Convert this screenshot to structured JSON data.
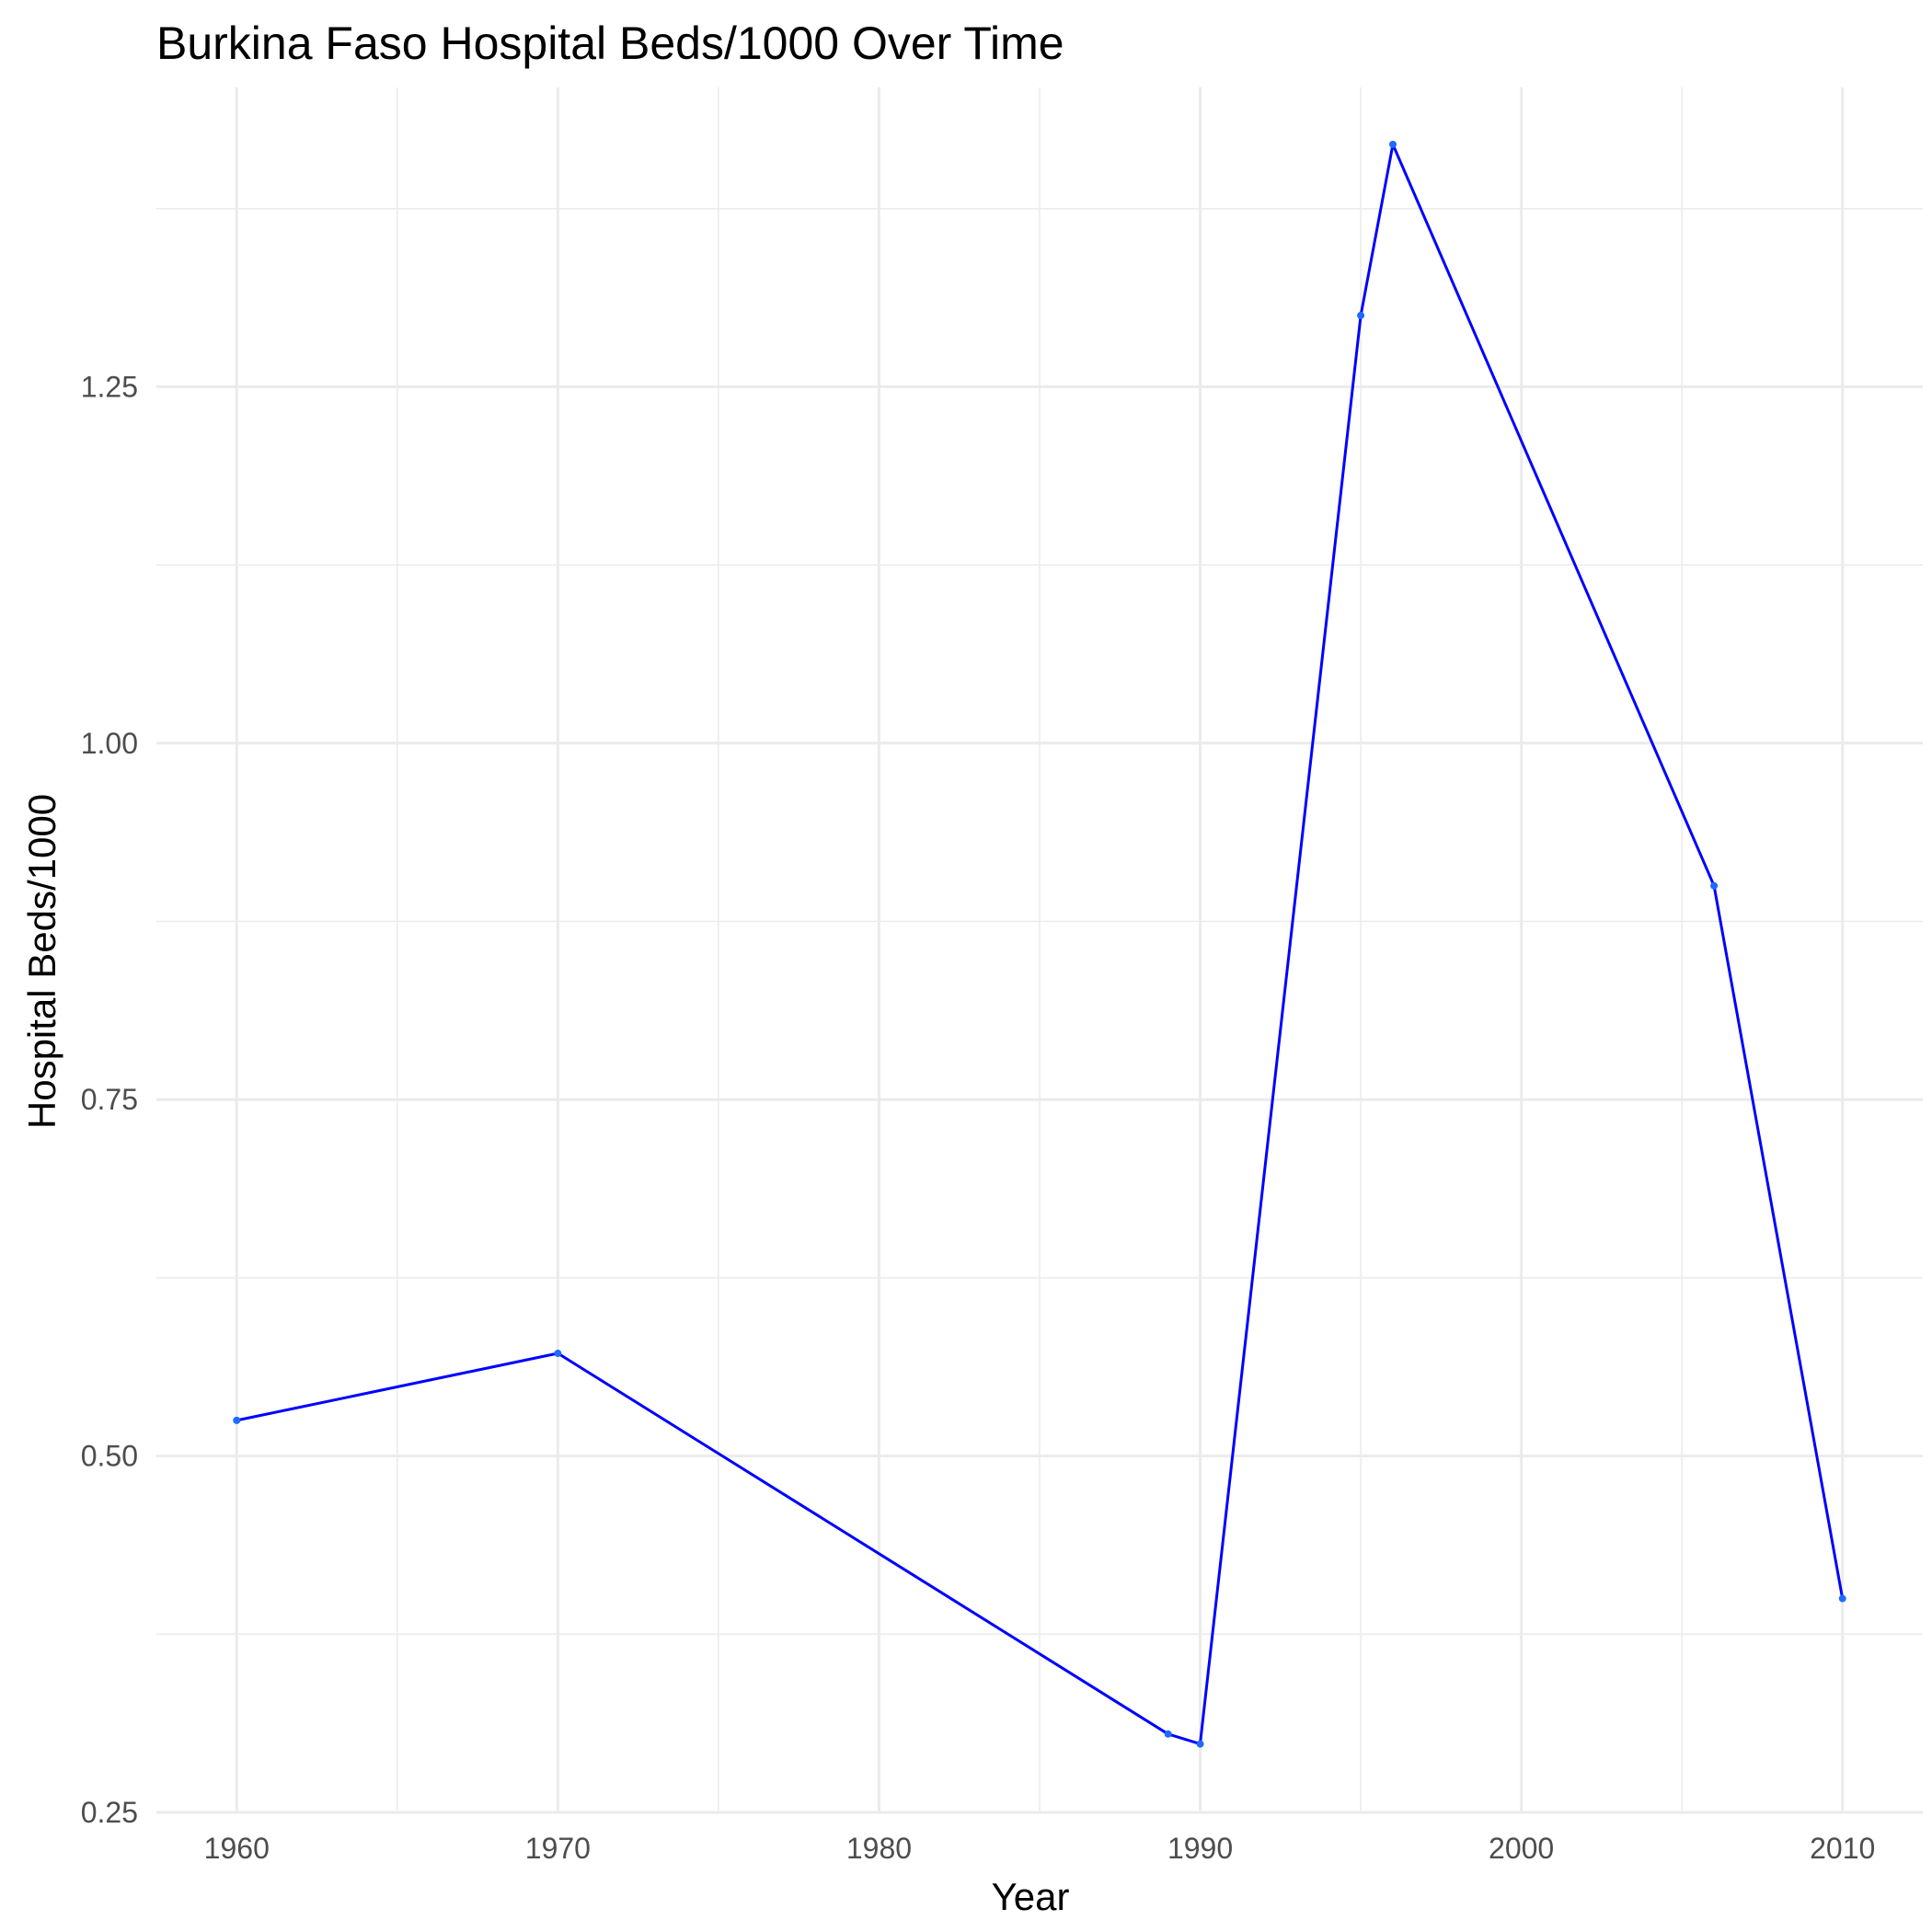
{
  "chart_data": {
    "type": "line",
    "title": "Burkina Faso Hospital Beds/1000 Over Time",
    "xlabel": "Year",
    "ylabel": "Hospital Beds/1000",
    "x": [
      1960,
      1970,
      1989,
      1990,
      1995,
      1996,
      2006,
      2010
    ],
    "series": [
      {
        "values": [
          0.525,
          0.572,
          0.305,
          0.298,
          1.3,
          1.42,
          0.9,
          0.4
        ]
      }
    ],
    "xlim": [
      1957.5,
      2012.5
    ],
    "ylim": [
      0.25,
      1.46
    ],
    "x_ticks": [
      "1960",
      "1970",
      "1980",
      "1990",
      "2000",
      "2010"
    ],
    "y_ticks": [
      "0.25",
      "0.50",
      "0.75",
      "1.00",
      "1.25"
    ],
    "grid": true,
    "line_color": "#0000ff",
    "grid_color": "#ebebeb",
    "tick_label_color": "#4d4d4d"
  }
}
